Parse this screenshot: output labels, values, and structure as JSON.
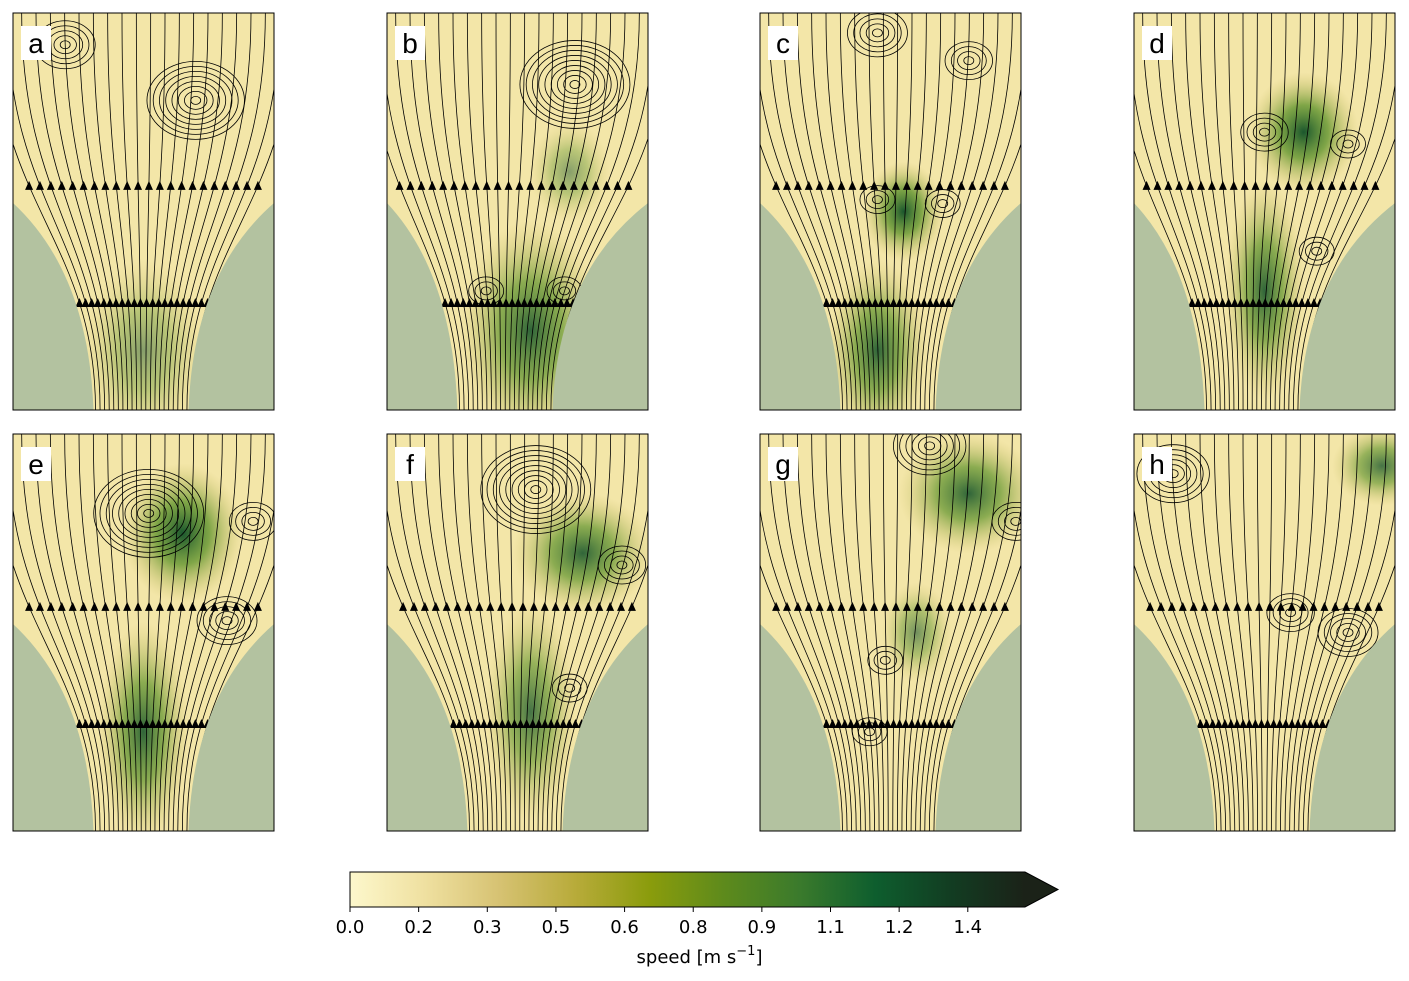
{
  "chart_data": {
    "type": "streamplot-grid",
    "panels": [
      {
        "label": "a"
      },
      {
        "label": "b"
      },
      {
        "label": "c"
      },
      {
        "label": "d"
      },
      {
        "label": "e"
      },
      {
        "label": "f"
      },
      {
        "label": "g"
      },
      {
        "label": "h"
      }
    ],
    "colorbar": {
      "label": "speed [m s",
      "label_exponent": "−1",
      "label_end": "]",
      "clim": [
        0,
        1.475
      ],
      "extend": "max",
      "colors": [
        "#fdf8cc",
        "#efe0a0",
        "#d6c272",
        "#b8ab3a",
        "#8a9c0c",
        "#5d8a1c",
        "#3a7a2c",
        "#0e5e2e",
        "#123d22",
        "#1b2218"
      ],
      "ticks": [
        {
          "value": 0,
          "label": "0.0"
        },
        {
          "value": 0.15,
          "label": "0.2"
        },
        {
          "value": 0.3,
          "label": "0.3"
        },
        {
          "value": 0.45,
          "label": "0.5"
        },
        {
          "value": 0.6,
          "label": "0.6"
        },
        {
          "value": 0.75,
          "label": "0.8"
        },
        {
          "value": 0.9,
          "label": "0.9"
        },
        {
          "value": 1.05,
          "label": "1.1"
        },
        {
          "value": 1.2,
          "label": "1.2"
        },
        {
          "value": 1.35,
          "label": "1.4"
        }
      ]
    }
  }
}
